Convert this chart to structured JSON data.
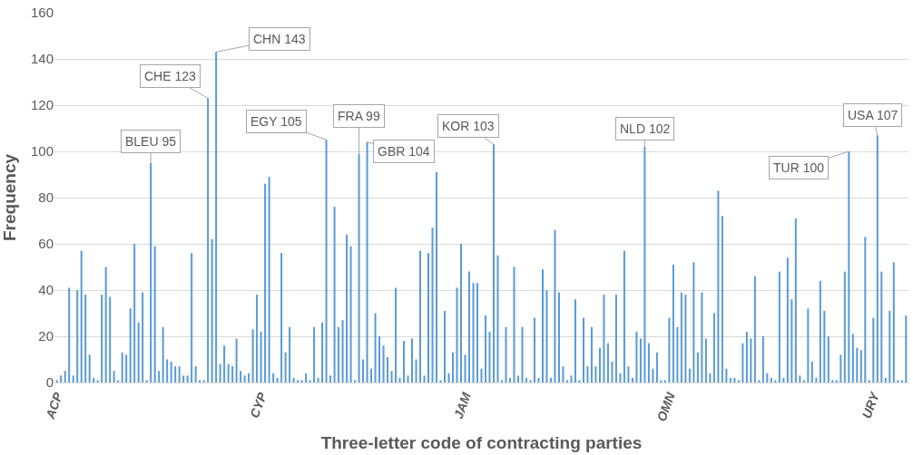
{
  "chart_data": {
    "type": "bar",
    "xlabel": "Three-letter code of contracting parties",
    "ylabel": "Frequency",
    "categories": [
      "ACP",
      null,
      null,
      null,
      null,
      null,
      null,
      null,
      null,
      null,
      null,
      null,
      null,
      null,
      null,
      null,
      null,
      null,
      null,
      null,
      null,
      null,
      null,
      null,
      null,
      null,
      null,
      null,
      null,
      null,
      null,
      null,
      null,
      null,
      null,
      null,
      null,
      null,
      null,
      null,
      null,
      null,
      null,
      null,
      null,
      null,
      null,
      null,
      null,
      null,
      "CYP",
      null,
      null,
      null,
      null,
      null,
      null,
      null,
      null,
      null,
      null,
      null,
      null,
      null,
      null,
      null,
      null,
      null,
      null,
      null,
      null,
      null,
      null,
      null,
      null,
      null,
      null,
      null,
      null,
      null,
      null,
      null,
      null,
      null,
      null,
      null,
      null,
      null,
      null,
      null,
      null,
      null,
      null,
      null,
      null,
      null,
      null,
      null,
      null,
      null,
      "JAM",
      null,
      null,
      null,
      null,
      null,
      null,
      null,
      null,
      null,
      null,
      null,
      null,
      null,
      null,
      null,
      null,
      null,
      null,
      null,
      null,
      null,
      null,
      null,
      null,
      null,
      null,
      null,
      null,
      null,
      null,
      null,
      null,
      null,
      null,
      null,
      null,
      null,
      null,
      null,
      null,
      null,
      null,
      null,
      null,
      null,
      null,
      null,
      null,
      null,
      "OMN",
      null,
      null,
      null,
      null,
      null,
      null,
      null,
      null,
      null,
      null,
      null,
      null,
      null,
      null,
      null,
      null,
      null,
      null,
      null,
      null,
      null,
      null,
      null,
      null,
      null,
      null,
      null,
      null,
      null,
      null,
      null,
      null,
      null,
      null,
      null,
      null,
      null,
      null,
      null,
      null,
      null,
      null,
      null,
      null,
      null,
      null,
      null,
      null,
      null,
      "URY",
      null,
      null,
      null,
      null,
      null,
      null,
      null,
      null
    ],
    "values": [
      1,
      3,
      5,
      41,
      3,
      40,
      57,
      38,
      12,
      2,
      1,
      38,
      50,
      37,
      5,
      1,
      13,
      12,
      32,
      60,
      26,
      39,
      1,
      95,
      59,
      5,
      24,
      10,
      9,
      7,
      7,
      3,
      3,
      56,
      7,
      1,
      1,
      123,
      62,
      143,
      8,
      16,
      8,
      7,
      19,
      5,
      3,
      4,
      23,
      38,
      22,
      86,
      89,
      4,
      2,
      56,
      13,
      24,
      2,
      1,
      1,
      4,
      1,
      24,
      2,
      26,
      105,
      3,
      76,
      24,
      27,
      64,
      59,
      1,
      99,
      10,
      104,
      6,
      30,
      20,
      16,
      11,
      5,
      41,
      2,
      18,
      3,
      19,
      10,
      57,
      3,
      56,
      67,
      91,
      1,
      31,
      4,
      13,
      41,
      60,
      12,
      48,
      43,
      43,
      6,
      29,
      22,
      103,
      55,
      1,
      24,
      2,
      50,
      3,
      24,
      2,
      1,
      28,
      2,
      49,
      40,
      2,
      66,
      39,
      7,
      1,
      3,
      36,
      1,
      28,
      7,
      24,
      7,
      15,
      38,
      17,
      9,
      38,
      4,
      57,
      7,
      2,
      22,
      19,
      102,
      17,
      6,
      13,
      1,
      1,
      28,
      51,
      24,
      39,
      38,
      6,
      52,
      13,
      39,
      19,
      4,
      30,
      83,
      72,
      6,
      2,
      2,
      1,
      17,
      22,
      19,
      46,
      1,
      20,
      4,
      2,
      1,
      48,
      2,
      54,
      36,
      71,
      3,
      1,
      32,
      9,
      2,
      44,
      31,
      20,
      1,
      1,
      12,
      48,
      100,
      21,
      15,
      14,
      63,
      1,
      28,
      107,
      48,
      2,
      31,
      52,
      1,
      1,
      29
    ],
    "value_labels": [
      null,
      null,
      null,
      null,
      null,
      null,
      null,
      null,
      null,
      null,
      null,
      null,
      null,
      null,
      null,
      null,
      null,
      null,
      null,
      null,
      null,
      null,
      null,
      "BLEU 95",
      null,
      null,
      null,
      null,
      null,
      null,
      null,
      null,
      null,
      null,
      null,
      null,
      null,
      "CHE 123",
      null,
      "CHN 143",
      null,
      null,
      null,
      null,
      null,
      null,
      null,
      null,
      null,
      null,
      null,
      null,
      null,
      null,
      null,
      null,
      null,
      null,
      null,
      null,
      null,
      null,
      null,
      null,
      null,
      null,
      "EGY 105",
      null,
      null,
      null,
      null,
      null,
      null,
      null,
      "FRA 99",
      null,
      "GBR 104",
      null,
      null,
      null,
      null,
      null,
      null,
      null,
      null,
      null,
      null,
      null,
      null,
      null,
      null,
      null,
      null,
      null,
      null,
      null,
      null,
      null,
      null,
      null,
      null,
      null,
      null,
      null,
      null,
      null,
      null,
      "KOR 103",
      null,
      null,
      null,
      null,
      null,
      null,
      null,
      null,
      null,
      null,
      null,
      null,
      null,
      null,
      null,
      null,
      null,
      null,
      null,
      null,
      null,
      null,
      null,
      null,
      null,
      null,
      null,
      null,
      null,
      null,
      null,
      null,
      null,
      null,
      null,
      null,
      "NLD 102",
      null,
      null,
      null,
      null,
      null,
      null,
      null,
      null,
      null,
      null,
      null,
      null,
      null,
      null,
      null,
      null,
      null,
      null,
      null,
      null,
      null,
      null,
      null,
      null,
      null,
      null,
      null,
      null,
      null,
      null,
      null,
      null,
      null,
      null,
      null,
      null,
      null,
      null,
      null,
      null,
      null,
      null,
      null,
      null,
      null,
      null,
      null,
      null,
      null,
      "TUR 100",
      null,
      null,
      null,
      null,
      null,
      null,
      "USA 107",
      null,
      null,
      null,
      null,
      null,
      null,
      null
    ],
    "color": "#5b9bd5",
    "ylim": [
      0,
      160
    ],
    "yticks": [
      0,
      20,
      40,
      60,
      80,
      100,
      120,
      140,
      160
    ],
    "grid": "y"
  }
}
